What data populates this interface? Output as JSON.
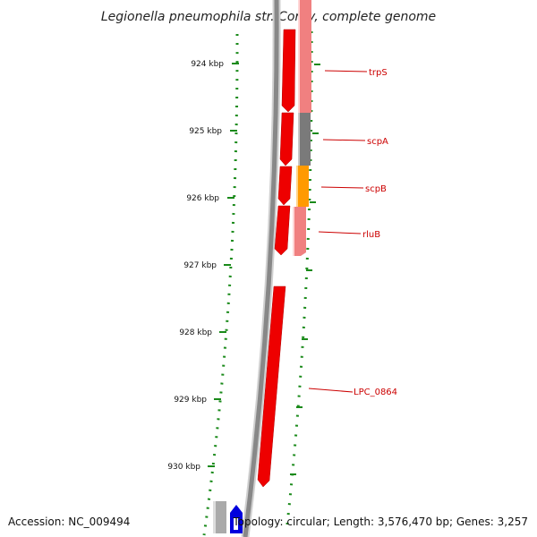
{
  "title": "Legionella pneumophila str. Corby, complete genome",
  "ticks": [
    {
      "label": "924 kbp"
    },
    {
      "label": "925 kbp"
    },
    {
      "label": "926 kbp"
    },
    {
      "label": "927 kbp"
    },
    {
      "label": "928 kbp"
    },
    {
      "label": "929 kbp"
    },
    {
      "label": "930 kbp"
    }
  ],
  "genes": [
    {
      "name": "trpS"
    },
    {
      "name": "scpA"
    },
    {
      "name": "scpB"
    },
    {
      "name": "rluB"
    },
    {
      "name": "LPC_0864"
    }
  ],
  "footer": {
    "accession": "Accession: NC_009494",
    "topology": "Topology: circular; Length: 3,576,470 bp; Genes: 3,257"
  },
  "colors": {
    "gene_forward": "#ee0000",
    "gene_shadow": "#b00000",
    "feature_pink": "#f08080",
    "feature_gray": "#7a7a7a",
    "feature_orange": "#ff9a00",
    "ruler_green": "#1a8a1a",
    "backbone_gray": "#888888",
    "label_red": "#cc0000",
    "blue_feature": "#0000dd"
  }
}
